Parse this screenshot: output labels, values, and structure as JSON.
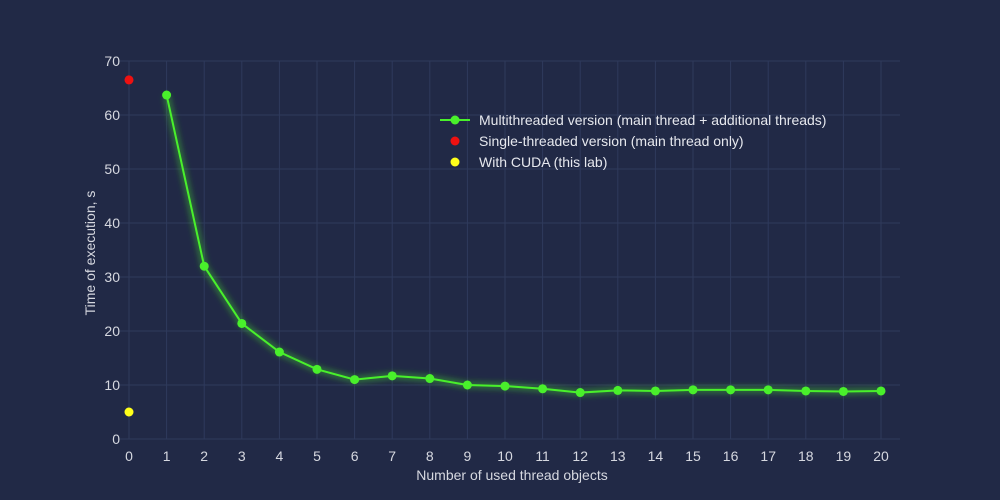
{
  "chart_data": {
    "type": "line",
    "title": "",
    "xlabel": "Number of used thread objects",
    "ylabel": "Time of execution, s",
    "xlim": [
      0,
      20
    ],
    "ylim": [
      0,
      70
    ],
    "xticks": [
      0,
      1,
      2,
      3,
      4,
      5,
      6,
      7,
      8,
      9,
      10,
      11,
      12,
      13,
      14,
      15,
      16,
      17,
      18,
      19,
      20
    ],
    "yticks": [
      0,
      10,
      20,
      30,
      40,
      50,
      60,
      70
    ],
    "grid": true,
    "legend_position": "top-right",
    "series": [
      {
        "name": "Multithreaded version (main thread + additional threads)",
        "type": "line",
        "color": "#49f02b",
        "x": [
          1,
          2,
          3,
          4,
          5,
          6,
          7,
          8,
          9,
          10,
          11,
          12,
          13,
          14,
          15,
          16,
          17,
          18,
          19,
          20
        ],
        "y": [
          63.7,
          32.0,
          21.4,
          16.1,
          12.9,
          11.0,
          11.7,
          11.2,
          10.0,
          9.8,
          9.3,
          8.6,
          9.0,
          8.9,
          9.1,
          9.1,
          9.1,
          8.9,
          8.8,
          8.9
        ]
      },
      {
        "name": "Single-threaded version (main thread only)",
        "type": "scatter",
        "color": "#ee1111",
        "x": [
          0
        ],
        "y": [
          66.5
        ]
      },
      {
        "name": "With CUDA (this lab)",
        "type": "scatter",
        "color": "#ffff1a",
        "x": [
          0
        ],
        "y": [
          5.0
        ]
      }
    ]
  }
}
